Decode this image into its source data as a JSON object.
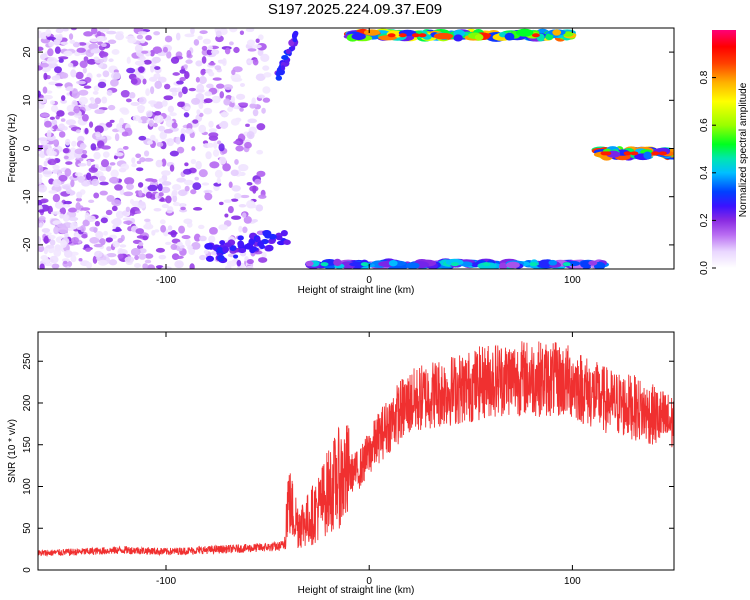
{
  "figure_title": "S197.2025.224.09.37.E09",
  "chart_data": [
    {
      "type": "heatmap",
      "title": "",
      "xlabel": "Height of straight line (km)",
      "ylabel": "Frequency (Hz)",
      "xlim": [
        -163,
        150
      ],
      "ylim": [
        -25,
        25
      ],
      "x_ticks": [
        -100,
        0,
        100
      ],
      "y_ticks": [
        -20,
        -10,
        0,
        10,
        20
      ],
      "colorbar": {
        "label": "Normalized spectral amplitude",
        "range": [
          0,
          1
        ],
        "ticks": [
          "0.0",
          "0.2",
          "0.4",
          "0.6",
          "0.8"
        ],
        "colormap": [
          "#ffffff",
          "#e9d6ff",
          "#b96cf2",
          "#8a2be2",
          "#3b12ff",
          "#0040ff",
          "#00bfff",
          "#00e6b0",
          "#00ff20",
          "#9aff00",
          "#ffff00",
          "#ffb000",
          "#ff4000",
          "#ff0000",
          "#ff0077"
        ]
      },
      "features": [
        {
          "name": "noise scatter",
          "x_range": [
            -163,
            -50
          ],
          "y_range": [
            -25,
            25
          ],
          "amplitude": 0.15
        },
        {
          "name": "upper band",
          "x_range": [
            -10,
            100
          ],
          "y": 23.5,
          "amplitude": 0.9
        },
        {
          "name": "lower band",
          "x_range": [
            -30,
            115
          ],
          "y": -24,
          "amplitude": 0.5
        },
        {
          "name": "zero-frequency band",
          "x_range": [
            113,
            150
          ],
          "y": -1,
          "amplitude": 0.9
        }
      ]
    },
    {
      "type": "line",
      "title": "",
      "xlabel": "Height of straight line (km)",
      "ylabel": "SNR (10 * v/v)",
      "xlim": [
        -163,
        150
      ],
      "ylim": [
        0,
        285
      ],
      "x_ticks": [
        -100,
        0,
        100
      ],
      "y_ticks": [
        0,
        50,
        100,
        150,
        200,
        250
      ],
      "series_color": "#f03030",
      "x": [
        -163,
        -140,
        -120,
        -100,
        -80,
        -60,
        -45,
        -42,
        -40,
        -35,
        -30,
        -25,
        -20,
        -15,
        -10,
        -5,
        0,
        5,
        10,
        15,
        20,
        30,
        40,
        50,
        60,
        70,
        80,
        90,
        100,
        110,
        120,
        130,
        140,
        150
      ],
      "values": [
        20,
        22,
        24,
        22,
        24,
        26,
        28,
        30,
        85,
        55,
        60,
        75,
        95,
        110,
        115,
        120,
        140,
        160,
        175,
        190,
        200,
        210,
        215,
        220,
        228,
        230,
        230,
        228,
        225,
        210,
        200,
        195,
        185,
        175
      ]
    }
  ]
}
